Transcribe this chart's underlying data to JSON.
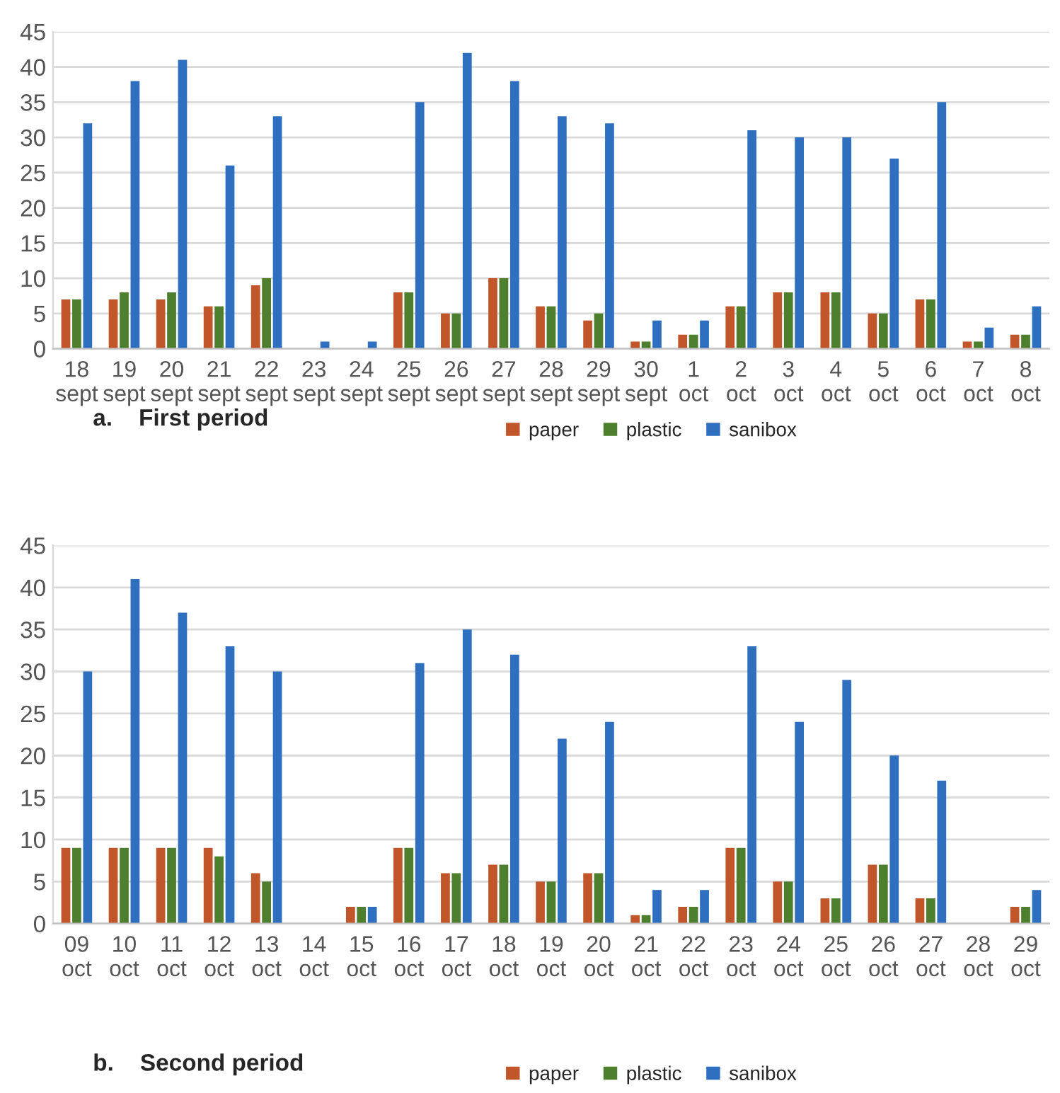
{
  "chart_data": [
    {
      "type": "bar",
      "title": "a.    First period",
      "categories": [
        "18\nsept",
        "19\nsept",
        "20\nsept",
        "21\nsept",
        "22\nsept",
        "23\nsept",
        "24\nsept",
        "25\nsept",
        "26\nsept",
        "27\nsept",
        "28\nsept",
        "29\nsept",
        "30\nsept",
        "1\noct",
        "2\noct",
        "3\noct",
        "4\noct",
        "5\noct",
        "6\noct",
        "7\noct",
        "8\noct"
      ],
      "series": [
        {
          "name": "paper",
          "color": "#c0562a",
          "values": [
            7,
            7,
            7,
            6,
            9,
            0,
            0,
            8,
            5,
            10,
            6,
            4,
            1,
            2,
            6,
            8,
            8,
            5,
            7,
            1,
            2
          ]
        },
        {
          "name": "plastic",
          "color": "#4e7f2f",
          "values": [
            7,
            8,
            8,
            6,
            10,
            0,
            0,
            8,
            5,
            10,
            6,
            5,
            1,
            2,
            6,
            8,
            8,
            5,
            7,
            1,
            2
          ]
        },
        {
          "name": "sanibox",
          "color": "#2f6fbf",
          "values": [
            32,
            38,
            41,
            26,
            33,
            1,
            1,
            35,
            42,
            38,
            33,
            32,
            4,
            4,
            31,
            30,
            30,
            27,
            35,
            3,
            6
          ]
        }
      ],
      "ylim": [
        0,
        45
      ],
      "yticks": [
        0,
        5,
        10,
        15,
        20,
        25,
        30,
        35,
        40,
        45
      ],
      "grid": "y",
      "legend": "bottom"
    },
    {
      "type": "bar",
      "title": "b.    Second period",
      "categories": [
        "09\noct",
        "10\noct",
        "11\noct",
        "12\noct",
        "13\noct",
        "14\noct",
        "15\noct",
        "16\noct",
        "17\noct",
        "18\noct",
        "19\noct",
        "20\noct",
        "21\noct",
        "22\noct",
        "23\noct",
        "24\noct",
        "25\noct",
        "26\noct",
        "27\noct",
        "28\noct",
        "29\noct"
      ],
      "series": [
        {
          "name": "paper",
          "color": "#c0562a",
          "values": [
            9,
            9,
            9,
            9,
            6,
            0,
            2,
            9,
            6,
            7,
            5,
            6,
            1,
            2,
            9,
            5,
            3,
            7,
            3,
            0,
            2
          ]
        },
        {
          "name": "plastic",
          "color": "#4e7f2f",
          "values": [
            9,
            9,
            9,
            8,
            5,
            0,
            2,
            9,
            6,
            7,
            5,
            6,
            1,
            2,
            9,
            5,
            3,
            7,
            3,
            0,
            2
          ]
        },
        {
          "name": "sanibox",
          "color": "#2f6fbf",
          "values": [
            30,
            41,
            37,
            33,
            30,
            0,
            2,
            31,
            35,
            32,
            22,
            24,
            4,
            4,
            33,
            24,
            29,
            20,
            17,
            0,
            4
          ]
        }
      ],
      "ylim": [
        0,
        45
      ],
      "yticks": [
        0,
        5,
        10,
        15,
        20,
        25,
        30,
        35,
        40,
        45
      ],
      "grid": "y",
      "legend": "bottom"
    }
  ]
}
